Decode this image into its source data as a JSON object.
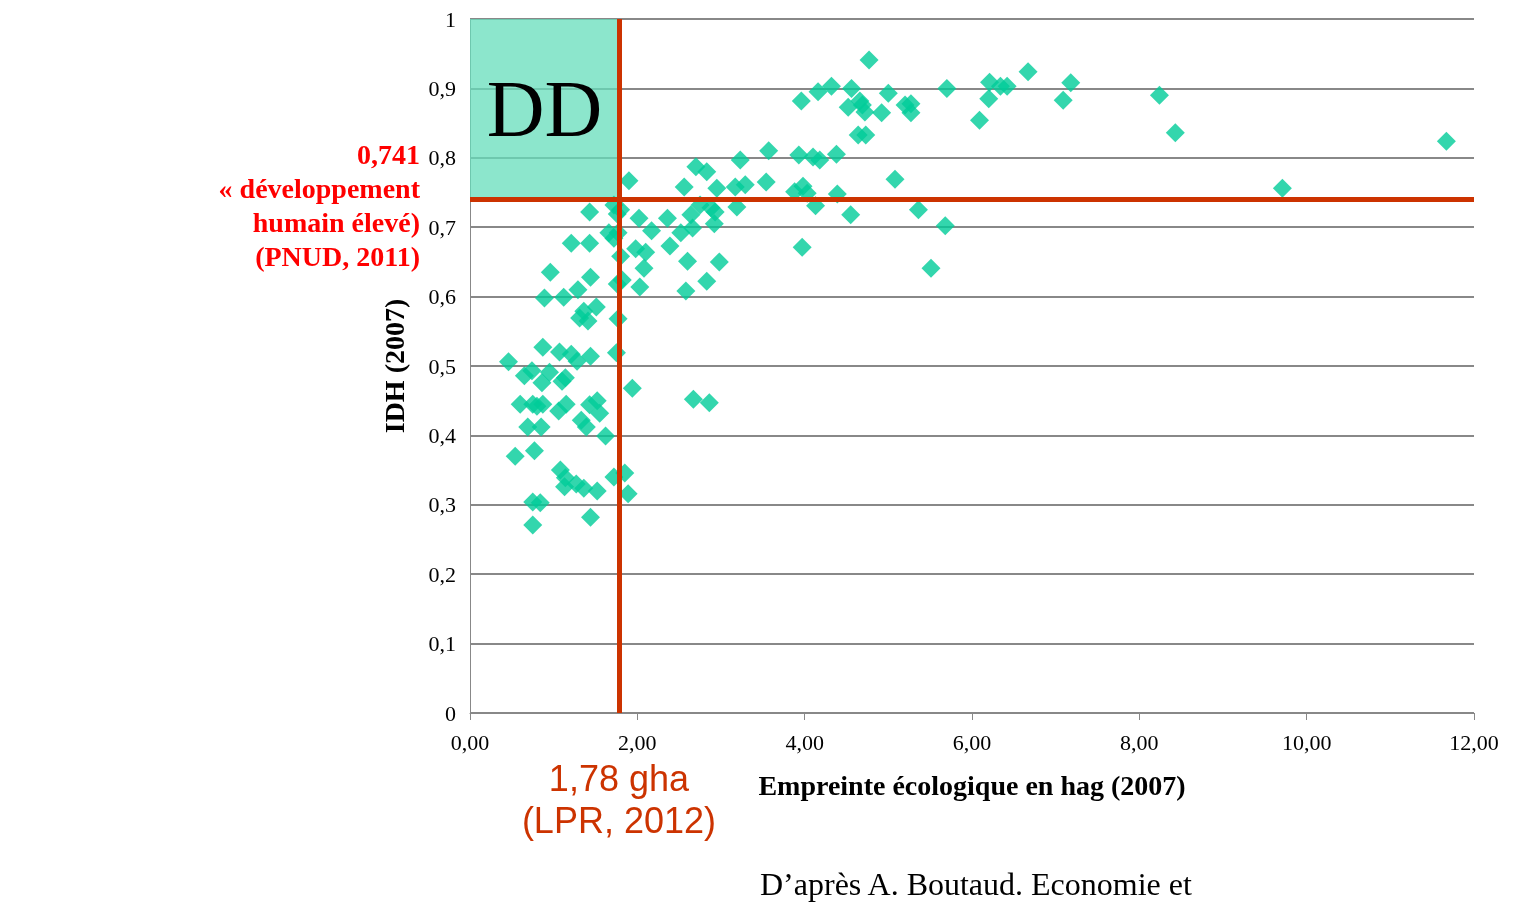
{
  "chart_data": {
    "type": "scatter",
    "xlabel": "Empreinte écologique en hag (2007)",
    "ylabel": "IDH (2007)",
    "xlim": [
      0,
      12
    ],
    "xticks": [
      {
        "value": 0,
        "label": "0,00"
      },
      {
        "value": 2,
        "label": "2,00"
      },
      {
        "value": 4,
        "label": "4,00"
      },
      {
        "value": 6,
        "label": "6,00"
      },
      {
        "value": 8,
        "label": "8,00"
      },
      {
        "value": 10,
        "label": "10,00"
      },
      {
        "value": 12,
        "label": "12,00"
      }
    ],
    "ylim": [
      0,
      1
    ],
    "yticks": [
      0,
      {
        "value": 0.1,
        "label": "0,1"
      },
      {
        "value": 0.2,
        "label": "0,2"
      },
      {
        "value": 0.3,
        "label": "0,3"
      },
      {
        "value": 0.4,
        "label": "0,4"
      },
      {
        "value": 0.5,
        "label": "0,5"
      },
      {
        "value": 0.6,
        "label": "0,6"
      },
      {
        "value": 0.7,
        "label": "0,7"
      },
      {
        "value": 0.8,
        "label": "0,8"
      },
      {
        "value": 0.9,
        "label": "0,9"
      },
      1
    ],
    "grid": "y",
    "marker": "diamond",
    "series": [
      {
        "color": "#00cc99",
        "x": [
          4.77,
          6.67,
          7.18,
          6.21,
          6.34,
          6.42,
          5.7,
          8.24,
          7.09,
          6.2,
          3.96,
          4.16,
          4.32,
          4.56,
          5.0,
          4.66,
          4.52,
          4.69,
          4.72,
          4.92,
          5.2,
          5.27,
          5.27,
          6.09,
          8.43,
          4.64,
          4.73,
          11.67,
          4.38,
          3.57,
          3.93,
          4.1,
          4.18,
          3.23,
          2.7,
          2.83,
          1.9,
          2.56,
          2.95,
          3.17,
          3.29,
          3.54,
          5.08,
          9.71,
          3.98,
          3.88,
          4.03,
          4.39,
          2.75,
          2.88,
          3.19,
          4.13,
          5.36,
          4.55,
          5.68,
          3.97,
          5.51,
          1.43,
          1.72,
          1.76,
          1.8,
          2.02,
          2.17,
          2.36,
          2.64,
          2.93,
          2.66,
          2.52,
          2.92,
          1.21,
          1.43,
          1.77,
          1.72,
          1.66,
          1.98,
          2.1,
          2.39,
          1.8,
          0.96,
          1.29,
          1.44,
          2.6,
          2.98,
          2.08,
          2.03,
          1.76,
          1.82,
          2.58,
          2.83,
          0.89,
          1.12,
          1.51,
          1.36,
          1.41,
          1.31,
          1.77,
          0.87,
          1.07,
          1.21,
          1.28,
          1.44,
          1.75,
          0.46,
          0.65,
          0.74,
          0.95,
          0.86,
          1.1,
          1.14,
          1.94,
          0.6,
          0.75,
          0.87,
          0.8,
          1.06,
          1.15,
          1.43,
          1.52,
          0.69,
          0.85,
          1.33,
          1.39,
          1.55,
          1.62,
          2.67,
          2.86,
          0.54,
          0.77,
          1.08,
          1.14,
          1.13,
          1.27,
          1.36,
          1.52,
          1.72,
          1.85,
          1.89,
          0.75,
          0.84,
          1.44,
          0.75
        ],
        "values": [
          0.941,
          0.924,
          0.908,
          0.909,
          0.903,
          0.903,
          0.9,
          0.89,
          0.883,
          0.885,
          0.882,
          0.895,
          0.903,
          0.9,
          0.893,
          0.882,
          0.873,
          0.876,
          0.866,
          0.865,
          0.876,
          0.878,
          0.865,
          0.854,
          0.836,
          0.833,
          0.833,
          0.824,
          0.805,
          0.81,
          0.804,
          0.801,
          0.797,
          0.797,
          0.787,
          0.78,
          0.767,
          0.758,
          0.756,
          0.758,
          0.761,
          0.765,
          0.769,
          0.756,
          0.759,
          0.751,
          0.749,
          0.748,
          0.732,
          0.728,
          0.729,
          0.731,
          0.725,
          0.718,
          0.702,
          0.671,
          0.641,
          0.722,
          0.732,
          0.719,
          0.725,
          0.713,
          0.695,
          0.713,
          0.718,
          0.722,
          0.699,
          0.692,
          0.705,
          0.677,
          0.677,
          0.692,
          0.684,
          0.692,
          0.669,
          0.664,
          0.673,
          0.658,
          0.635,
          0.61,
          0.628,
          0.651,
          0.65,
          0.641,
          0.614,
          0.618,
          0.624,
          0.608,
          0.622,
          0.598,
          0.599,
          0.585,
          0.579,
          0.565,
          0.569,
          0.568,
          0.527,
          0.52,
          0.517,
          0.507,
          0.514,
          0.519,
          0.506,
          0.486,
          0.493,
          0.491,
          0.476,
          0.478,
          0.483,
          0.468,
          0.445,
          0.445,
          0.445,
          0.442,
          0.435,
          0.445,
          0.444,
          0.45,
          0.412,
          0.412,
          0.422,
          0.412,
          0.432,
          0.399,
          0.452,
          0.447,
          0.37,
          0.378,
          0.35,
          0.339,
          0.326,
          0.33,
          0.324,
          0.32,
          0.34,
          0.346,
          0.316,
          0.304,
          0.303,
          0.282,
          0.271
        ]
      }
    ],
    "ref_lines": [
      {
        "axis": "y",
        "value": 0.741,
        "label": "0,741\n« développement\nhumain élevé)\n(PNUD, 2011)",
        "color": "#cc3300"
      },
      {
        "axis": "x",
        "value": 1.78,
        "label": "1,78 gha\n(LPR, 2012)",
        "color": "#cc3300"
      }
    ],
    "bands": [
      {
        "axis": "x",
        "from": 0,
        "to": 1.78,
        "label": "DD",
        "color": "#66ddbb"
      }
    ],
    "annotations": [
      "D’après A. Boutaud. Economie et"
    ]
  }
}
